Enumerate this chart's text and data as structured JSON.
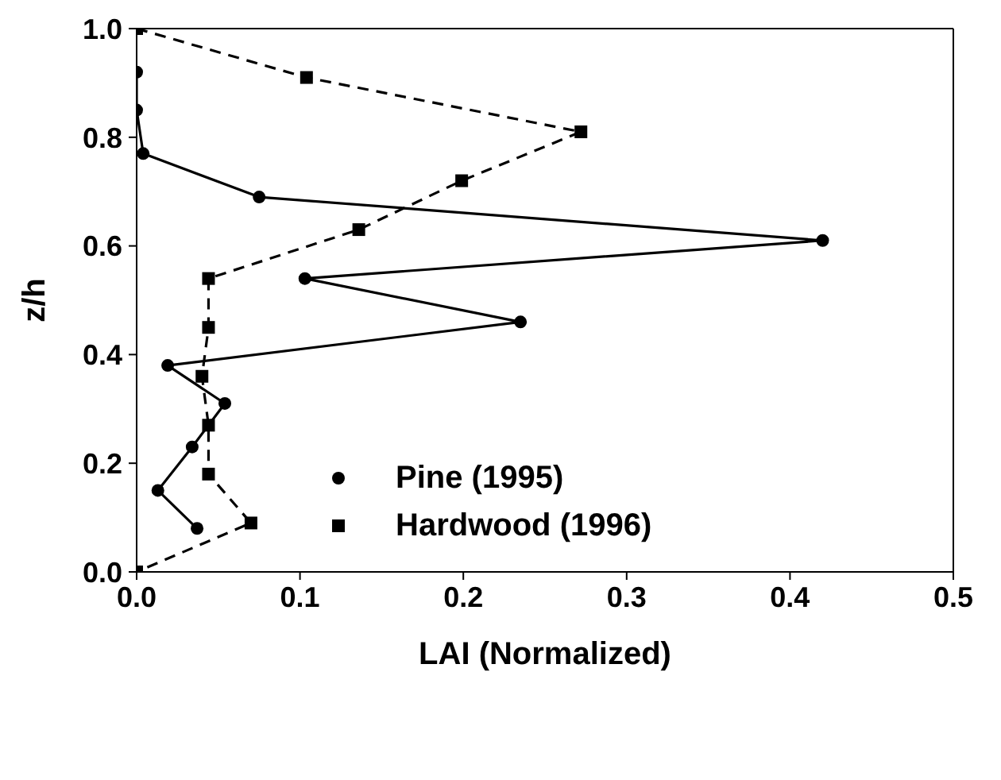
{
  "chart_data": {
    "type": "line",
    "xlabel": "LAI (Normalized)",
    "ylabel": "z/h",
    "xlim": [
      0,
      0.5
    ],
    "xticks": [
      {
        "value": 0,
        "label": "0.0"
      },
      0.1,
      0.2,
      0.3,
      0.4,
      0.5
    ],
    "ylim": [
      0,
      1
    ],
    "yticks": [
      {
        "value": 0,
        "label": "0.0"
      },
      0.2,
      0.4,
      0.6,
      0.8,
      {
        "value": 1,
        "label": "1.0"
      }
    ],
    "grid": false,
    "legend": "bottom",
    "series": [
      {
        "name": "Pine (1995)",
        "color": "#000000",
        "marker": "circle",
        "line_style": "solid",
        "x": [
          0,
          0,
          0.004,
          0.075,
          0.42,
          0.103,
          0.235,
          0.019,
          0.054,
          0.034,
          0.013,
          0.037
        ],
        "values": [
          0.92,
          0.85,
          0.77,
          0.69,
          0.61,
          0.54,
          0.46,
          0.38,
          0.31,
          0.23,
          0.15,
          0.08
        ]
      },
      {
        "name": "Hardwood (1996)",
        "color": "#000000",
        "marker": "square",
        "line_style": "dashed",
        "x": [
          0,
          0.104,
          0.272,
          0.199,
          0.136,
          0.044,
          0.044,
          0.04,
          0.044,
          0.044,
          0.07,
          0
        ],
        "values": [
          1,
          0.91,
          0.81,
          0.72,
          0.63,
          0.54,
          0.45,
          0.36,
          0.27,
          0.18,
          0.09,
          0
        ]
      }
    ]
  }
}
